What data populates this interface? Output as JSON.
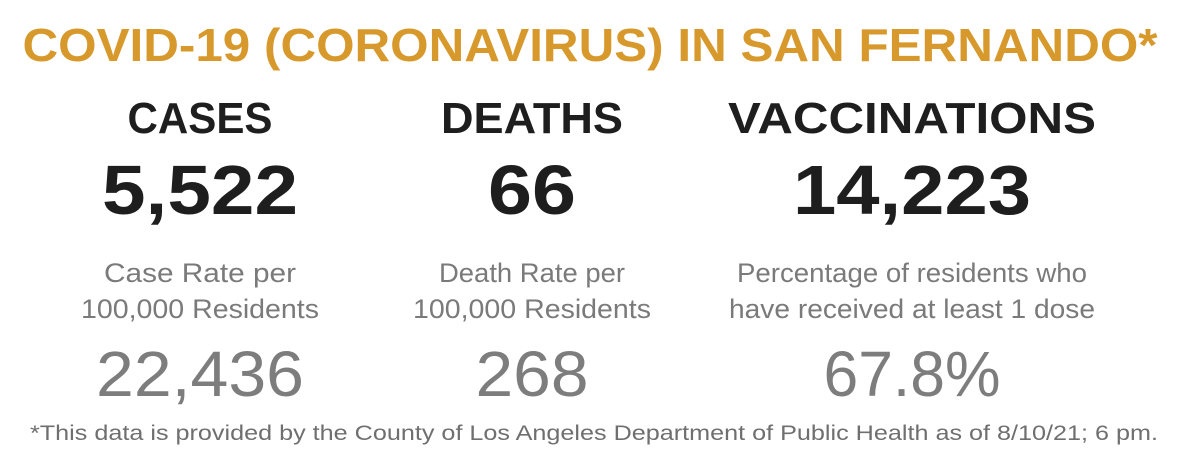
{
  "title": "COVID-19 (CORONAVIRUS) IN SAN FERNANDO*",
  "columns": [
    {
      "heading": "CASES",
      "total": "5,522",
      "description": [
        "Case Rate per",
        "100,000 Residents"
      ],
      "rate": "22,436"
    },
    {
      "heading": "DEATHS",
      "total": "66",
      "description": [
        "Death Rate per",
        "100,000 Residents"
      ],
      "rate": "268"
    },
    {
      "heading": "VACCINATIONS",
      "total": "14,223",
      "description": [
        "Percentage of residents who",
        "have received at least 1 dose"
      ],
      "rate": "67.8%"
    }
  ],
  "footnote": "*This data is provided by the County of Los Angeles Department of Public Health as of 8/10/21; 6 pm."
}
